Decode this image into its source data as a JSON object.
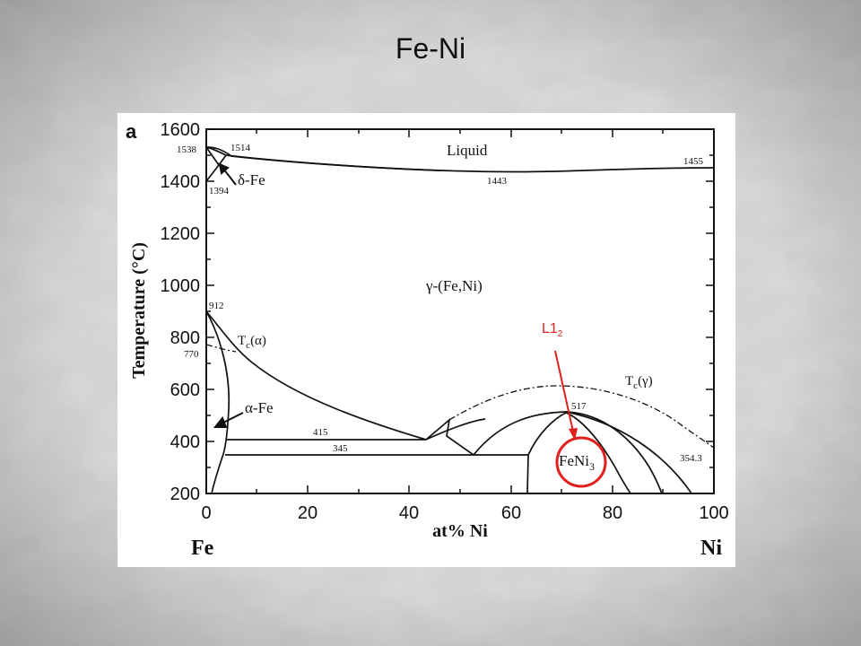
{
  "slide": {
    "title": "Fe-Ni"
  },
  "figure": {
    "panel_label": "a",
    "y_axis_label": "Temperature (°C)",
    "x_axis_label": "at% Ni",
    "x_left_element": "Fe",
    "x_right_element": "Ni",
    "y_ticks": [
      "1600",
      "1400",
      "1200",
      "1000",
      "800",
      "600",
      "400",
      "200"
    ],
    "x_ticks": [
      "0",
      "20",
      "40",
      "60",
      "80",
      "100"
    ],
    "phase_labels": {
      "liquid": "Liquid",
      "gamma": "γ-(Fe,Ni)",
      "delta": "δ-Fe",
      "alpha": "α-Fe",
      "tc_alpha": "T",
      "tc_alpha_sub": "c",
      "tc_alpha_arg": "(α)",
      "tc_gamma": "T",
      "tc_gamma_sub": "c",
      "tc_gamma_arg": "(γ)",
      "feni3": "FeNi",
      "feni3_sub": "3"
    },
    "temperature_labels": {
      "t1538": "1538",
      "t1514": "1514",
      "t1394": "1394",
      "t1443": "1443",
      "t1455": "1455",
      "t912": "912",
      "t770": "770",
      "t415": "415",
      "t345": "345",
      "t517": "517",
      "t354": "354.3"
    }
  },
  "callout": {
    "label": "L1",
    "label_sub": "2",
    "color": "#e0201c"
  },
  "colors": {
    "background": "#c9c9c9",
    "figure_bg": "#ffffff",
    "line": "#111111"
  }
}
